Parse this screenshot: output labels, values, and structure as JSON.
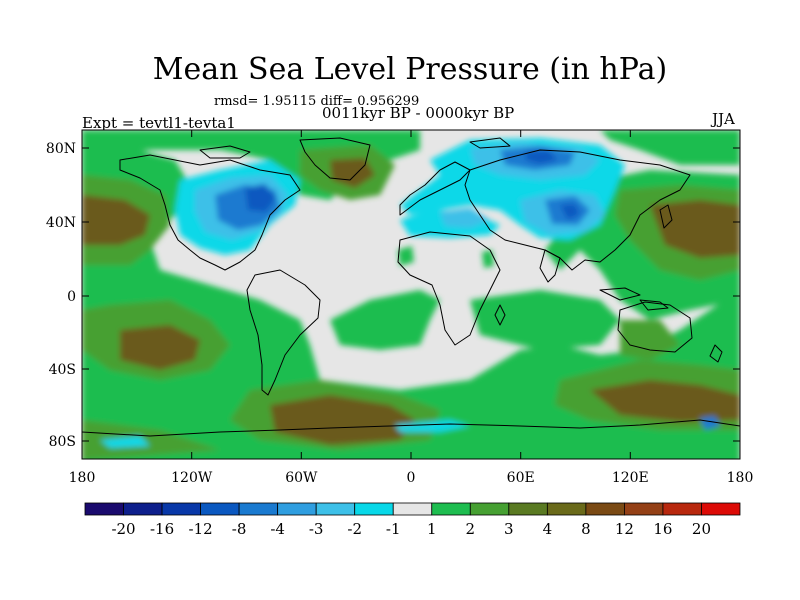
{
  "title": "Mean Sea Level Pressure (in hPa)",
  "stats": "rmsd= 1.95115  diff= 0.956299",
  "subtitle": "0011kyr BP - 0000kyr BP",
  "experiment": "Expt = tevtl1-tevta1",
  "season": "JJA",
  "map": {
    "lon_ticks": [
      "180",
      "120W",
      "60W",
      "0",
      "60E",
      "120E",
      "180"
    ],
    "lat_ticks": [
      "80N",
      "40N",
      "0",
      "40S",
      "80S"
    ]
  },
  "colorbar": {
    "colors": [
      "#1a0a6e",
      "#0e1f8c",
      "#0838a8",
      "#0a58c0",
      "#1a7ad0",
      "#2f9ee0",
      "#3dc0e8",
      "#08d8e8",
      "#e6e6e6",
      "#1ebd50",
      "#46a032",
      "#5a7a22",
      "#6a6a1a",
      "#7a4a14",
      "#944016",
      "#b8280e",
      "#dc0a06"
    ],
    "labels": [
      "-20",
      "-16",
      "-12",
      "-8",
      "-4",
      "-3",
      "-2",
      "-1",
      "1",
      "2",
      "3",
      "4",
      "8",
      "12",
      "16",
      "20"
    ]
  },
  "colors": {
    "land": "#e6e6e6",
    "pos_1_2": "#1ebd50",
    "pos_2_3": "#46a032",
    "pos_3_8": "#6a5a1c",
    "neg_1_2": "#08d8e8",
    "neg_2_3": "#3dc0e8",
    "neg_3_4": "#1a7ad0",
    "neg_4_8": "#0a58c0"
  }
}
